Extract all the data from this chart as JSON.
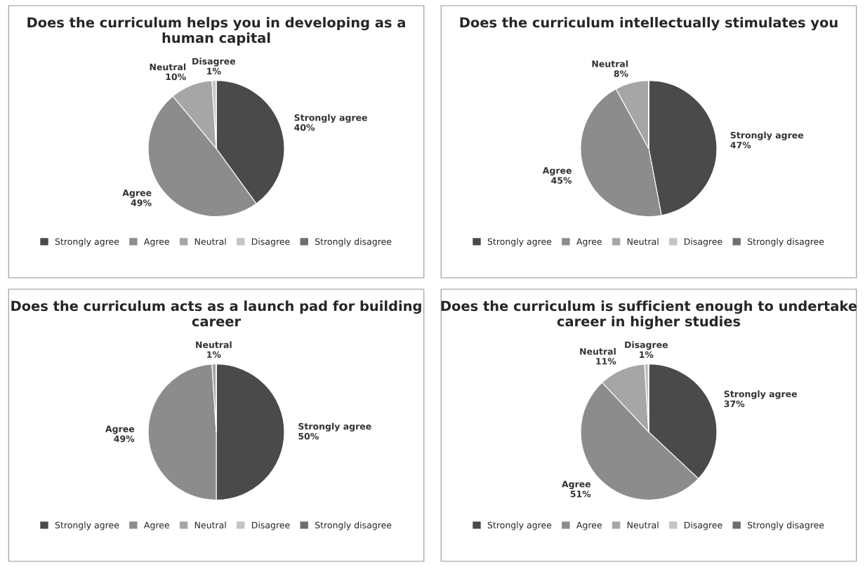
{
  "chart_data": [
    {
      "type": "pie",
      "title": "Does the curriculum helps you in developing as a human capital",
      "categories": [
        "Strongly agree",
        "Agree",
        "Neutral",
        "Disagree",
        "Strongly disagree"
      ],
      "values": [
        40,
        49,
        10,
        1,
        0
      ],
      "colors": [
        "#4a4a4a",
        "#8c8c8c",
        "#a6a6a6",
        "#c4c4c4",
        "#6e6e6e"
      ],
      "value_labels": [
        "40%",
        "49%",
        "10%",
        "1%",
        null
      ],
      "legend": "bottom"
    },
    {
      "type": "pie",
      "title": "Does the curriculum intellectually stimulates you",
      "categories": [
        "Strongly agree",
        "Agree",
        "Neutral",
        "Disagree",
        "Strongly disagree"
      ],
      "values": [
        47,
        45,
        8,
        0,
        0
      ],
      "colors": [
        "#4a4a4a",
        "#8c8c8c",
        "#a6a6a6",
        "#c4c4c4",
        "#6e6e6e"
      ],
      "value_labels": [
        "47%",
        "45%",
        "8%",
        null,
        null
      ],
      "legend": "bottom"
    },
    {
      "type": "pie",
      "title": "Does the curriculum acts as a launch pad for building career",
      "categories": [
        "Strongly agree",
        "Agree",
        "Neutral",
        "Disagree",
        "Strongly disagree"
      ],
      "values": [
        50,
        49,
        1,
        0,
        0
      ],
      "colors": [
        "#4a4a4a",
        "#8c8c8c",
        "#a6a6a6",
        "#c4c4c4",
        "#6e6e6e"
      ],
      "value_labels": [
        "50%",
        "49%",
        "1%",
        null,
        null
      ],
      "legend": "bottom"
    },
    {
      "type": "pie",
      "title": "Does the curriculum is sufficient enough to undertake career in higher studies",
      "categories": [
        "Strongly agree",
        "Agree",
        "Neutral",
        "Disagree",
        "Strongly disagree"
      ],
      "values": [
        37,
        51,
        11,
        1,
        0
      ],
      "colors": [
        "#4a4a4a",
        "#8c8c8c",
        "#a6a6a6",
        "#c4c4c4",
        "#6e6e6e"
      ],
      "value_labels": [
        "37%",
        "51%",
        "11%",
        "1%",
        null
      ],
      "legend": "bottom"
    }
  ]
}
